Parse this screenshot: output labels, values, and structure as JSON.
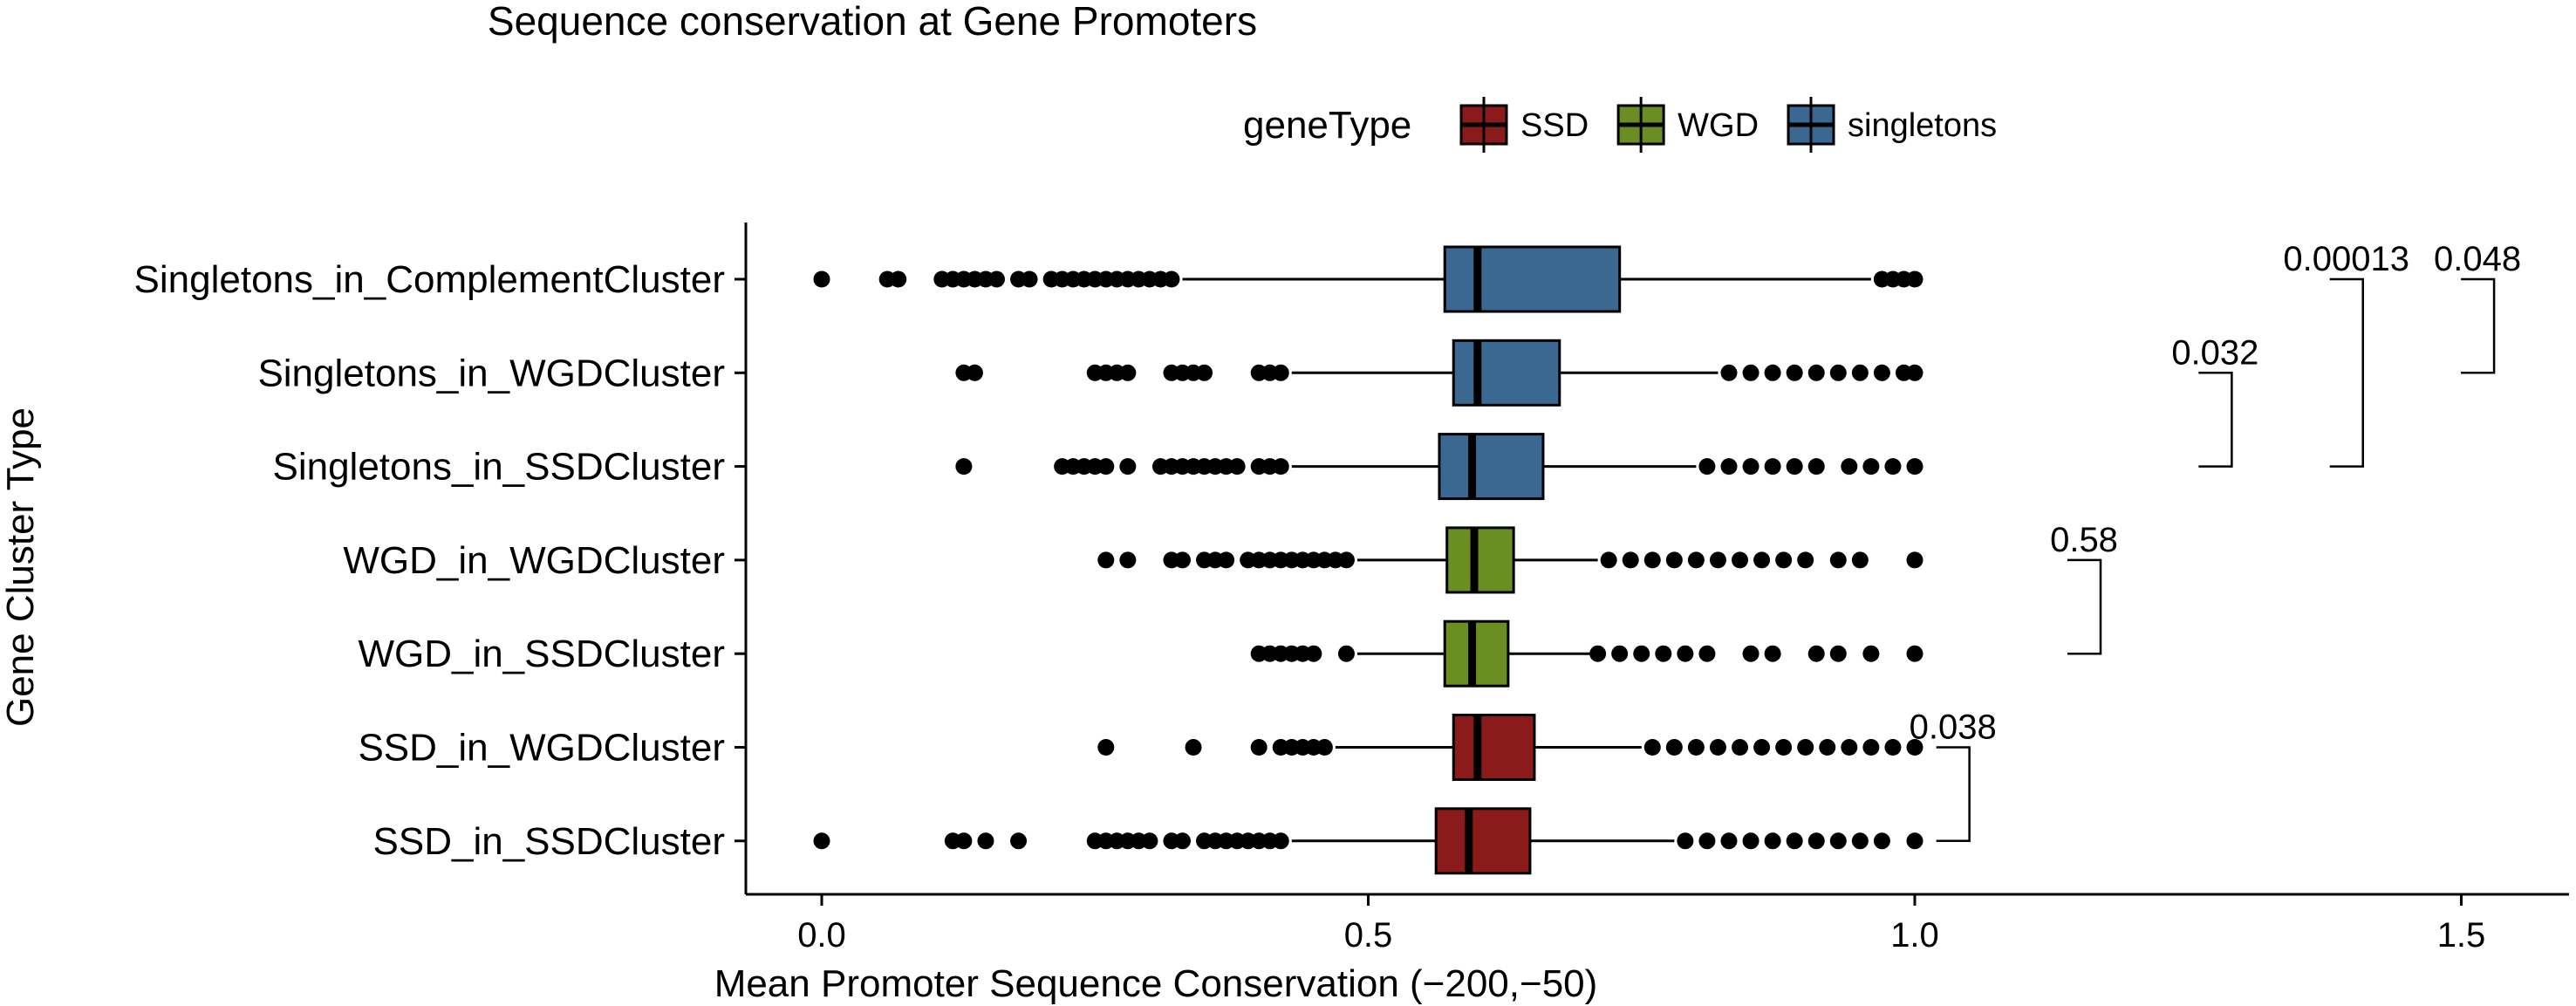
{
  "chart_data": {
    "type": "boxplot",
    "orientation": "horizontal",
    "title": "Sequence conservation at Gene Promoters",
    "xlabel": "Mean Promoter Sequence Conservation (−200,−50)",
    "ylabel": "Gene Cluster Type",
    "xlim": [
      -0.14,
      1.61
    ],
    "xticks": [
      0.0,
      0.5,
      1.0,
      1.5
    ],
    "xtick_labels": [
      "0.0",
      "0.5",
      "1.0",
      "1.5"
    ],
    "grid": false,
    "legend": {
      "title": "geneType",
      "position": "top",
      "entries": [
        {
          "label": "SSD",
          "color": "#8B1A1A"
        },
        {
          "label": "WGD",
          "color": "#6B8E23"
        },
        {
          "label": "singletons",
          "color": "#3A6891"
        }
      ]
    },
    "categories": [
      "Singletons_in_ComplementCluster",
      "Singletons_in_WGDCluster",
      "Singletons_in_SSDCluster",
      "WGD_in_WGDCluster",
      "WGD_in_SSDCluster",
      "SSD_in_WGDCluster",
      "SSD_in_SSDCluster"
    ],
    "series": [
      {
        "category": "Singletons_in_ComplementCluster",
        "geneType": "singletons",
        "whisker_low": 0.33,
        "q1": 0.57,
        "median": 0.6,
        "q3": 0.73,
        "whisker_high": 0.96,
        "outliers": [
          0.0,
          0.06,
          0.07,
          0.11,
          0.12,
          0.13,
          0.14,
          0.15,
          0.16,
          0.18,
          0.19,
          0.21,
          0.22,
          0.23,
          0.24,
          0.25,
          0.26,
          0.27,
          0.28,
          0.29,
          0.3,
          0.31,
          0.32,
          0.97,
          0.98,
          0.99,
          1.0
        ]
      },
      {
        "category": "Singletons_in_WGDCluster",
        "geneType": "singletons",
        "whisker_low": 0.43,
        "q1": 0.578,
        "median": 0.6,
        "q3": 0.675,
        "whisker_high": 0.82,
        "outliers": [
          0.13,
          0.14,
          0.25,
          0.26,
          0.27,
          0.28,
          0.32,
          0.33,
          0.34,
          0.35,
          0.4,
          0.41,
          0.42,
          0.83,
          0.85,
          0.87,
          0.89,
          0.91,
          0.93,
          0.95,
          0.97,
          0.99,
          1.0
        ]
      },
      {
        "category": "Singletons_in_SSDCluster",
        "geneType": "singletons",
        "whisker_low": 0.43,
        "q1": 0.565,
        "median": 0.595,
        "q3": 0.66,
        "whisker_high": 0.8,
        "outliers": [
          0.13,
          0.22,
          0.23,
          0.24,
          0.25,
          0.26,
          0.28,
          0.31,
          0.32,
          0.33,
          0.34,
          0.35,
          0.36,
          0.37,
          0.38,
          0.4,
          0.41,
          0.42,
          0.81,
          0.83,
          0.85,
          0.87,
          0.89,
          0.91,
          0.94,
          0.96,
          0.98,
          1.0
        ]
      },
      {
        "category": "WGD_in_WGDCluster",
        "geneType": "WGD",
        "whisker_low": 0.49,
        "q1": 0.572,
        "median": 0.597,
        "q3": 0.633,
        "whisker_high": 0.71,
        "outliers": [
          0.26,
          0.28,
          0.32,
          0.33,
          0.35,
          0.36,
          0.37,
          0.39,
          0.4,
          0.41,
          0.42,
          0.43,
          0.44,
          0.45,
          0.46,
          0.47,
          0.48,
          0.72,
          0.74,
          0.76,
          0.78,
          0.8,
          0.82,
          0.84,
          0.86,
          0.88,
          0.9,
          0.93,
          0.95,
          1.0
        ]
      },
      {
        "category": "WGD_in_SSDCluster",
        "geneType": "WGD",
        "whisker_low": 0.49,
        "q1": 0.57,
        "median": 0.595,
        "q3": 0.628,
        "whisker_high": 0.71,
        "outliers": [
          0.4,
          0.41,
          0.42,
          0.43,
          0.44,
          0.45,
          0.48,
          0.71,
          0.73,
          0.75,
          0.77,
          0.79,
          0.81,
          0.85,
          0.87,
          0.91,
          0.93,
          0.96,
          1.0
        ]
      },
      {
        "category": "SSD_in_WGDCluster",
        "geneType": "SSD",
        "whisker_low": 0.47,
        "q1": 0.578,
        "median": 0.6,
        "q3": 0.652,
        "whisker_high": 0.75,
        "outliers": [
          0.26,
          0.34,
          0.4,
          0.42,
          0.43,
          0.44,
          0.45,
          0.46,
          0.76,
          0.78,
          0.8,
          0.82,
          0.84,
          0.86,
          0.88,
          0.9,
          0.92,
          0.94,
          0.96,
          0.98,
          1.0
        ]
      },
      {
        "category": "SSD_in_SSDCluster",
        "geneType": "SSD",
        "whisker_low": 0.43,
        "q1": 0.562,
        "median": 0.592,
        "q3": 0.648,
        "whisker_high": 0.78,
        "outliers": [
          0.0,
          0.12,
          0.13,
          0.15,
          0.18,
          0.25,
          0.26,
          0.27,
          0.28,
          0.29,
          0.3,
          0.32,
          0.33,
          0.35,
          0.36,
          0.37,
          0.38,
          0.39,
          0.4,
          0.41,
          0.42,
          0.79,
          0.81,
          0.83,
          0.85,
          0.87,
          0.89,
          0.91,
          0.93,
          0.95,
          0.97,
          1.0
        ]
      }
    ],
    "annotations": [
      {
        "label": "0.048",
        "from": "Singletons_in_ComplementCluster",
        "to": "Singletons_in_WGDCluster",
        "x": 1.53
      },
      {
        "label": "0.00013",
        "from": "Singletons_in_ComplementCluster",
        "to": "Singletons_in_SSDCluster",
        "x": 1.41
      },
      {
        "label": "0.032",
        "from": "Singletons_in_WGDCluster",
        "to": "Singletons_in_SSDCluster",
        "x": 1.29
      },
      {
        "label": "0.58",
        "from": "WGD_in_WGDCluster",
        "to": "WGD_in_SSDCluster",
        "x": 1.17
      },
      {
        "label": "0.038",
        "from": "SSD_in_WGDCluster",
        "to": "SSD_in_SSDCluster",
        "x": 1.05
      }
    ]
  }
}
